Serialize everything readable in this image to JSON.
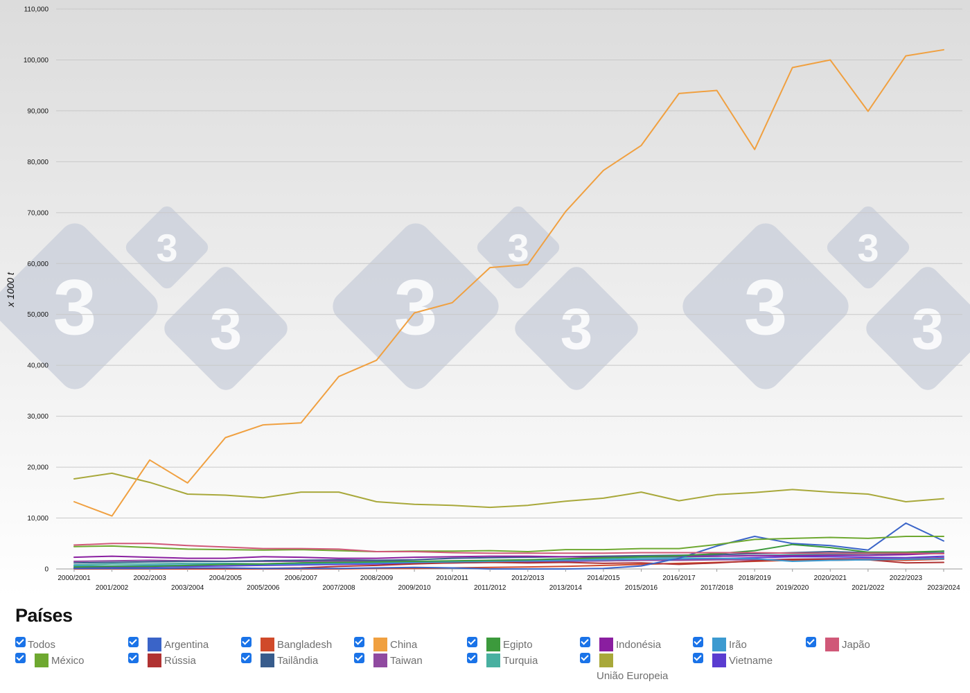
{
  "chart_data": {
    "type": "line",
    "ylabel": "x 1000 t",
    "ylim": [
      0,
      110000
    ],
    "yticks": [
      "0",
      "10,000",
      "20,000",
      "30,000",
      "40,000",
      "50,000",
      "60,000",
      "70,000",
      "80,000",
      "90,000",
      "100,000",
      "110,000"
    ],
    "x": [
      "2000/2001",
      "2001/2002",
      "2002/2003",
      "2003/2004",
      "2004/2005",
      "2005/2006",
      "2006/2007",
      "2007/2008",
      "2008/2009",
      "2009/2010",
      "2010/2011",
      "2011/2012",
      "2012/2013",
      "2013/2014",
      "2014/2015",
      "2015/2016",
      "2016/2017",
      "2017/2018",
      "2018/2019",
      "2019/2020",
      "2020/2021",
      "2021/2022",
      "2022/2023",
      "2023/2024"
    ],
    "grid": true,
    "legend_position": "bottom",
    "series": [
      {
        "name": "China",
        "color": "#f0a040",
        "values": [
          13200,
          10400,
          21400,
          16900,
          25800,
          28300,
          28700,
          37800,
          41000,
          50300,
          52300,
          59200,
          59800,
          70200,
          78300,
          83200,
          93400,
          94000,
          82400,
          98500,
          100000,
          89900,
          100800,
          102000
        ]
      },
      {
        "name": "União Europeia",
        "color": "#a8a83a",
        "values": [
          17700,
          18800,
          17000,
          14700,
          14500,
          14000,
          15100,
          15100,
          13200,
          12700,
          12500,
          12100,
          12500,
          13300,
          13900,
          15100,
          13400,
          14600,
          15000,
          15600,
          15100,
          14700,
          13200,
          13800
        ]
      },
      {
        "name": "Japão",
        "color": "#d05878",
        "values": [
          4700,
          5000,
          5000,
          4600,
          4300,
          4000,
          4000,
          3900,
          3400,
          3400,
          3200,
          3100,
          3100,
          3100,
          3100,
          3200,
          3200,
          3200,
          3200,
          3100,
          3100,
          3100,
          3100,
          3000
        ]
      },
      {
        "name": "México",
        "color": "#6ea830",
        "values": [
          4400,
          4500,
          4200,
          3900,
          3800,
          3700,
          3800,
          3600,
          3400,
          3500,
          3500,
          3600,
          3400,
          3800,
          3800,
          4000,
          4000,
          4800,
          5800,
          6000,
          6200,
          6000,
          6400,
          6400
        ]
      },
      {
        "name": "Egipto",
        "color": "#3c9a3c",
        "values": [
          400,
          500,
          500,
          700,
          900,
          1000,
          1200,
          1300,
          1400,
          1500,
          1600,
          1700,
          1800,
          2000,
          2200,
          2400,
          2600,
          3000,
          3600,
          4800,
          4200,
          3300,
          3300,
          3500
        ]
      },
      {
        "name": "Argentina",
        "color": "#3a64c8",
        "values": [
          100,
          100,
          100,
          200,
          200,
          100,
          100,
          100,
          200,
          300,
          200,
          0,
          0,
          0,
          100,
          600,
          2100,
          4500,
          6400,
          5000,
          4600,
          3700,
          9000,
          5500
        ]
      },
      {
        "name": "Indonésia",
        "color": "#8a1ea0",
        "values": [
          2300,
          2500,
          2300,
          2100,
          2100,
          2400,
          2300,
          2100,
          2100,
          2300,
          2400,
          2500,
          2500,
          2400,
          2300,
          2400,
          2500,
          2500,
          2600,
          2600,
          2700,
          2700,
          2800,
          3100
        ]
      },
      {
        "name": "Irão",
        "color": "#3c9ad0",
        "values": [
          600,
          600,
          700,
          800,
          900,
          900,
          1000,
          1100,
          1200,
          1300,
          1400,
          1500,
          1600,
          1700,
          1800,
          1900,
          2000,
          2100,
          2000,
          1500,
          1700,
          1800,
          1900,
          2000
        ]
      },
      {
        "name": "Rússia",
        "color": "#b03232",
        "values": [
          100,
          100,
          100,
          100,
          100,
          100,
          200,
          500,
          700,
          1000,
          1200,
          1300,
          1200,
          1300,
          1100,
          1200,
          900,
          1200,
          1600,
          1900,
          1900,
          1800,
          1200,
          1300
        ]
      },
      {
        "name": "Bangladesh",
        "color": "#d04a2a",
        "values": [
          0,
          0,
          0,
          0,
          0,
          0,
          0,
          0,
          100,
          100,
          200,
          300,
          400,
          500,
          700,
          900,
          1100,
          1300,
          1500,
          1700,
          1700,
          1800,
          1700,
          1900
        ]
      },
      {
        "name": "Tailândia",
        "color": "#385c8c",
        "values": [
          1200,
          1300,
          1400,
          1500,
          1500,
          1600,
          1700,
          1800,
          1700,
          1800,
          2100,
          2200,
          2300,
          2400,
          2500,
          2600,
          2700,
          2800,
          3000,
          3200,
          3400,
          3200,
          3000,
          3500
        ]
      },
      {
        "name": "Taiwan",
        "color": "#904aa0",
        "values": [
          1500,
          1600,
          1700,
          1600,
          1500,
          1500,
          1500,
          1600,
          1500,
          1500,
          1500,
          1500,
          1500,
          1600,
          1600,
          1700,
          1700,
          1800,
          1800,
          1900,
          2000,
          2000,
          2000,
          2200
        ]
      },
      {
        "name": "Turquia",
        "color": "#48b0a0",
        "values": [
          800,
          1000,
          1000,
          1100,
          1100,
          1000,
          1200,
          1400,
          1300,
          1400,
          1500,
          1600,
          1700,
          1800,
          2000,
          2200,
          2300,
          2500,
          2600,
          2800,
          2900,
          3000,
          3000,
          3200
        ]
      },
      {
        "name": "Vietname",
        "color": "#5a3cd0",
        "values": [
          200,
          300,
          400,
          500,
          600,
          700,
          800,
          900,
          1000,
          1100,
          1200,
          1300,
          1400,
          1500,
          1600,
          1700,
          1800,
          2000,
          2200,
          2400,
          2400,
          2300,
          2200,
          2500
        ]
      }
    ]
  },
  "legend": {
    "title": "Países",
    "items": [
      {
        "label": "Todos",
        "color": ""
      },
      {
        "label": "Argentina",
        "color": "#3a64c8"
      },
      {
        "label": "Bangladesh",
        "color": "#d04a2a"
      },
      {
        "label": "China",
        "color": "#f0a040"
      },
      {
        "label": "Egipto",
        "color": "#3c9a3c"
      },
      {
        "label": "Indonésia",
        "color": "#8a1ea0"
      },
      {
        "label": "Irão",
        "color": "#3c9ad0"
      },
      {
        "label": "Japão",
        "color": "#d05878"
      },
      {
        "label": "México",
        "color": "#6ea830"
      },
      {
        "label": "Rússia",
        "color": "#b03232"
      },
      {
        "label": "Tailândia",
        "color": "#385c8c"
      },
      {
        "label": "Taiwan",
        "color": "#904aa0"
      },
      {
        "label": "Turquia",
        "color": "#48b0a0"
      },
      {
        "label": "União Europeia",
        "color": "#a8a83a"
      },
      {
        "label": "Vietname",
        "color": "#5a3cd0"
      }
    ]
  },
  "watermark": {
    "glyph": "3",
    "color": "#c6ccd8"
  }
}
